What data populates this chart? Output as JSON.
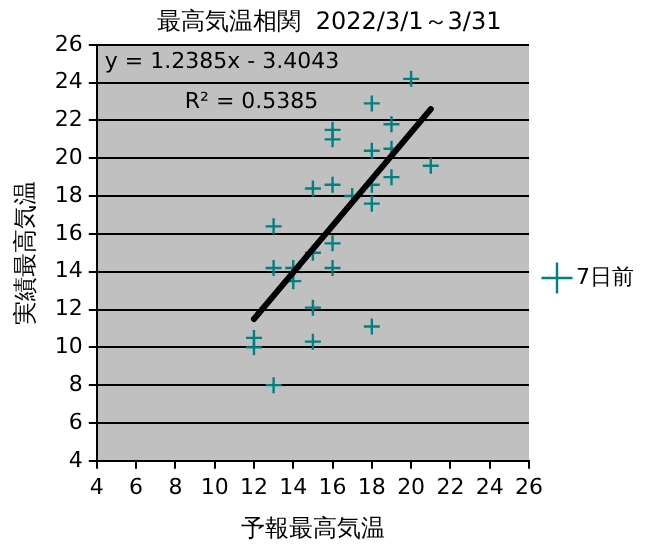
{
  "chart_data": {
    "type": "scatter",
    "title": "最高気温相関  2022/3/1～3/31",
    "xlabel": "予報最高気温",
    "ylabel": "実績最高気温",
    "xlim": [
      4,
      26
    ],
    "xticks": [
      4,
      6,
      8,
      10,
      12,
      14,
      16,
      18,
      20,
      22,
      24,
      26
    ],
    "ylim": [
      4,
      26
    ],
    "yticks": [
      4,
      6,
      8,
      10,
      12,
      14,
      16,
      18,
      20,
      22,
      24,
      26
    ],
    "grid": "y",
    "legend": "right",
    "marker": "cross",
    "annotations": [
      "y = 1.2385x - 3.4043",
      "R² = 0.5385"
    ],
    "series": [
      {
        "name": "7日前",
        "color": "#008080",
        "x": [
          20,
          18,
          19,
          16,
          16,
          18,
          19,
          21,
          16,
          15,
          18,
          19,
          17,
          18,
          13,
          16,
          15,
          16,
          13,
          14,
          14,
          15,
          12,
          12,
          15,
          18,
          13
        ],
        "values": [
          24.2,
          22.9,
          21.8,
          21.5,
          21,
          20.4,
          20.5,
          19.6,
          18.6,
          18.4,
          18.6,
          19,
          18,
          17.6,
          16.4,
          15.5,
          15,
          14.2,
          14.2,
          14.2,
          13.5,
          12.1,
          10.5,
          10,
          10.3,
          11.1,
          8
        ]
      },
      {
        "type": "line",
        "color": "#000000",
        "marker": "none",
        "x": [
          12,
          21
        ],
        "values": [
          11.5,
          22.6
        ]
      }
    ]
  }
}
